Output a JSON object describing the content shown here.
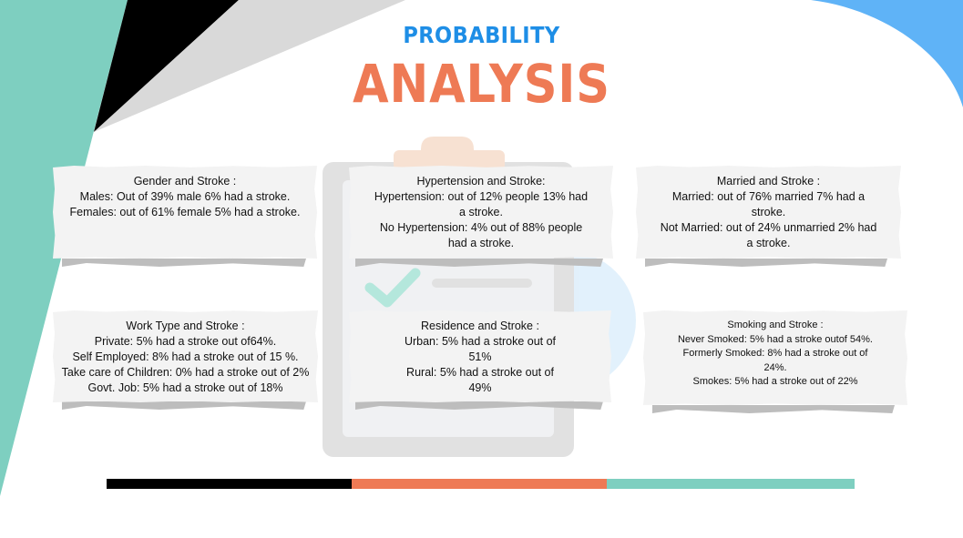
{
  "header": {
    "subtitle": "PROBABILITY",
    "title": "ANALYSIS"
  },
  "colors": {
    "blue": "#1e8ee6",
    "orange": "#ee7a55",
    "teal": "#7ecfc0",
    "black": "#000000",
    "light_blue": "#5fb3f7"
  },
  "cards": [
    {
      "heading": "Gender and Stroke :",
      "lines": [
        "Males: Out of 39% male 6% had a stroke.",
        "Females: out of 61% female 5% had a stroke."
      ]
    },
    {
      "heading": "Hypertension and Stroke:",
      "lines": [
        "Hypertension: out of 12% people 13% had a stroke.",
        "No Hypertension: 4% out of 88% people had a stroke."
      ]
    },
    {
      "heading": "Married and Stroke :",
      "lines": [
        "Married: out of 76% married 7% had a stroke.",
        "Not Married: out of 24% unmarried 2% had a stroke."
      ]
    },
    {
      "heading": "Work Type and Stroke :",
      "lines": [
        "Private: 5% had a stroke out of64%.",
        "Self Employed: 8% had a stroke out of 15 %.",
        "Take care of Children: 0% had a stroke out of 2%",
        "Govt. Job: 5% had a stroke out of 18%"
      ]
    },
    {
      "heading": "Residence and Stroke :",
      "lines": [
        "Urban: 5% had a stroke out of 51%",
        "Rural: 5% had a stroke out of 49%"
      ]
    },
    {
      "heading": "Smoking and Stroke :",
      "lines": [
        "Never Smoked: 5% had a stroke outof 54%.",
        "Formerly Smoked: 8% had a stroke out of 24%.",
        "Smokes: 5% had a stroke out of 22%"
      ]
    }
  ],
  "illustration": {
    "icon": "clipboard-checkmark-icon"
  }
}
